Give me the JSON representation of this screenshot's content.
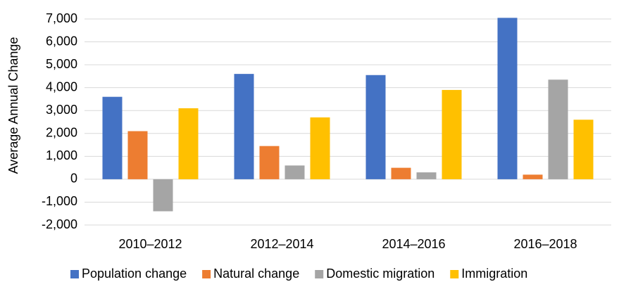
{
  "chart_data": {
    "type": "bar",
    "y_label": "Average Annual Change",
    "categories": [
      "2010–2012",
      "2012–2014",
      "2014–2016",
      "2016–2018"
    ],
    "series": [
      {
        "name": "Population change",
        "color": "#4472c4",
        "values": [
          3600,
          4600,
          4550,
          7050
        ]
      },
      {
        "name": "Natural change",
        "color": "#ed7d31",
        "values": [
          2100,
          1450,
          500,
          200
        ]
      },
      {
        "name": "Domestic migration",
        "color": "#a5a5a5",
        "values": [
          -1400,
          600,
          300,
          4350
        ]
      },
      {
        "name": "Immigration",
        "color": "#ffc000",
        "values": [
          3100,
          2700,
          3900,
          2600
        ]
      }
    ],
    "ylim": [
      -2000,
      7000
    ],
    "yticks": [
      {
        "value": -2000,
        "label": "-2,000"
      },
      {
        "value": -1000,
        "label": "-1,000"
      },
      0,
      {
        "value": 1000,
        "label": "1,000"
      },
      {
        "value": 2000,
        "label": "2,000"
      },
      {
        "value": 3000,
        "label": "3,000"
      },
      {
        "value": 4000,
        "label": "4,000"
      },
      {
        "value": 5000,
        "label": "5,000"
      },
      {
        "value": 6000,
        "label": "6,000"
      },
      {
        "value": 7000,
        "label": "7,000"
      }
    ],
    "grid": true,
    "legend": "bottom"
  }
}
